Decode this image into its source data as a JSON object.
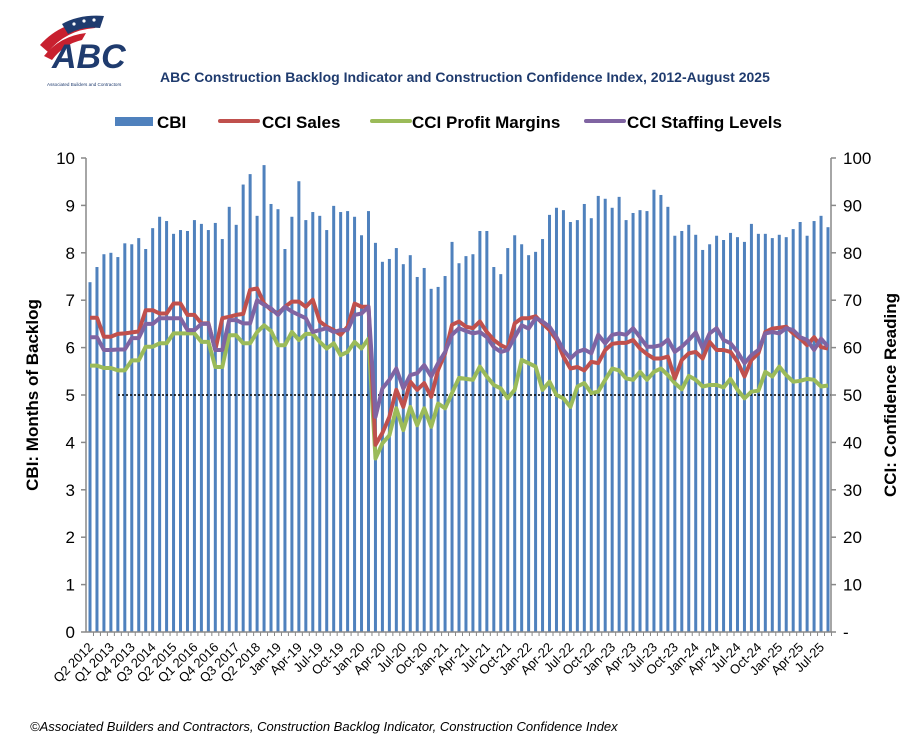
{
  "logo": {
    "text": "ABC",
    "subtitle": "Associated Builders and Contractors"
  },
  "footnote": "©Associated Builders and Contractors, Construction Backlog Indicator, Construction Confidence Index",
  "chart_data": {
    "type": "bar+line",
    "title": "ABC Construction Backlog Indicator and Construction Confidence Index, 2012-August 2025",
    "ylabel_left": "CBI: Months of Backlog",
    "ylabel_right": "CCI: Confidence Reading",
    "ylim_left": [
      0,
      10
    ],
    "ylim_right": [
      0,
      100
    ],
    "yticks_left": [
      "0",
      "1",
      "2",
      "3",
      "4",
      "5",
      "6",
      "7",
      "8",
      "9",
      "10"
    ],
    "yticks_right": [
      "-",
      "10",
      "20",
      "30",
      "40",
      "50",
      "60",
      "70",
      "80",
      "90",
      "100"
    ],
    "reference_line": {
      "axis": "right",
      "value": 50,
      "style": "dotted"
    },
    "legend_position": "top",
    "grid": false,
    "colors": {
      "CBI": "#4f81bd",
      "CCI Sales": "#c0504d",
      "CCI Profit Margins": "#9bbb59",
      "CCI Staffing Levels": "#8064a2"
    },
    "categories": [
      "Q2 2012",
      "Q3 2012",
      "Q4 2012",
      "Q1 2013",
      "Q2 2013",
      "Q3 2013",
      "Q4 2013",
      "Q1 2014",
      "Q2 2014",
      "Q3 2014",
      "Q4 2014",
      "Q1 2015",
      "Q2 2015",
      "Q3 2015",
      "Q4 2015",
      "Q1 2016",
      "Q2 2016",
      "Q3 2016",
      "Q4 2016",
      "Q1 2017",
      "Q2 2017",
      "Q3 2017",
      "Q4 2017",
      "Q1 2018",
      "Q2 2018",
      "Q3 2018",
      "Q4 2018",
      "Jan-19",
      "Feb-19",
      "Mar-19",
      "Apr-19",
      "May-19",
      "Jun-19",
      "Jul-19",
      "Aug-19",
      "Sep-19",
      "Oct-19",
      "Nov-19",
      "Dec-19",
      "Jan-20",
      "Feb-20",
      "Mar-20",
      "Apr-20",
      "May-20",
      "Jun-20",
      "Jul-20",
      "Aug-20",
      "Sep-20",
      "Oct-20",
      "Nov-20",
      "Dec-20",
      "Jan-21",
      "Feb-21",
      "Mar-21",
      "Apr-21",
      "May-21",
      "Jun-21",
      "Jul-21",
      "Aug-21",
      "Sep-21",
      "Oct-21",
      "Nov-21",
      "Dec-21",
      "Jan-22",
      "Feb-22",
      "Mar-22",
      "Apr-22",
      "May-22",
      "Jun-22",
      "Jul-22",
      "Aug-22",
      "Sep-22",
      "Oct-22",
      "Nov-22",
      "Dec-22",
      "Jan-23",
      "Feb-23",
      "Mar-23",
      "Apr-23",
      "May-23",
      "Jun-23",
      "Jul-23",
      "Aug-23",
      "Sep-23",
      "Oct-23",
      "Nov-23",
      "Dec-23",
      "Jan-24",
      "Feb-24",
      "Mar-24",
      "Apr-24",
      "May-24",
      "Jun-24",
      "Jul-24",
      "Aug-24",
      "Sep-24",
      "Oct-24",
      "Nov-24",
      "Dec-24",
      "Jan-25",
      "Feb-25",
      "Mar-25",
      "Apr-25",
      "May-25",
      "Jun-25",
      "Jul-25",
      "Aug-25"
    ],
    "tick_labels": [
      "Q2 2012",
      "Q1 2013",
      "Q4 2013",
      "Q3 2014",
      "Q2 2015",
      "Q1 2016",
      "Q4 2016",
      "Q3 2017",
      "Q2 2018",
      "Jan-19",
      "Apr-19",
      "Jul-19",
      "Oct-19",
      "Jan-20",
      "Apr-20",
      "Jul-20",
      "Oct-20",
      "Jan-21",
      "Apr-21",
      "Jul-21",
      "Oct-21",
      "Jan-22",
      "Apr-22",
      "Jul-22",
      "Oct-22",
      "Jan-23",
      "Apr-23",
      "Jul-23",
      "Oct-23",
      "Jan-24",
      "Apr-24",
      "Jul-24",
      "Oct-24",
      "Jan-25",
      "Apr-25",
      "Jul-25"
    ],
    "series": [
      {
        "name": "CBI",
        "type": "bar",
        "axis": "left",
        "values": [
          7.38,
          7.7,
          7.97,
          8.0,
          7.91,
          8.2,
          8.18,
          8.31,
          8.08,
          8.52,
          8.76,
          8.67,
          8.4,
          8.48,
          8.46,
          8.69,
          8.61,
          8.48,
          8.63,
          8.29,
          8.97,
          8.59,
          9.44,
          9.66,
          8.78,
          9.85,
          9.03,
          8.92,
          8.08,
          8.76,
          9.51,
          8.69,
          8.86,
          8.78,
          8.48,
          8.99,
          8.86,
          8.88,
          8.76,
          8.37,
          8.88,
          8.21,
          7.81,
          7.87,
          8.1,
          7.76,
          7.95,
          7.49,
          7.68,
          7.24,
          7.28,
          7.51,
          8.23,
          7.78,
          7.93,
          7.97,
          8.46,
          8.46,
          7.7,
          7.55,
          8.1,
          8.37,
          8.18,
          7.95,
          8.02,
          8.29,
          8.8,
          8.95,
          8.9,
          8.65,
          8.69,
          9.03,
          8.73,
          9.2,
          9.14,
          8.95,
          9.18,
          8.69,
          8.84,
          8.9,
          8.88,
          9.33,
          9.22,
          8.97,
          8.36,
          8.46,
          8.59,
          8.38,
          8.06,
          8.18,
          8.36,
          8.27,
          8.42,
          8.33,
          8.23,
          8.61,
          8.4,
          8.4,
          8.31,
          8.38,
          8.33,
          8.5,
          8.65,
          8.36,
          8.67,
          8.78,
          8.54
        ]
      },
      {
        "name": "CCI Sales",
        "type": "line",
        "axis": "right",
        "values": [
          66.3,
          66.3,
          62.3,
          62.3,
          62.9,
          63.0,
          63.2,
          63.4,
          67.9,
          67.9,
          67.2,
          67.2,
          69.3,
          69.3,
          66.9,
          66.9,
          65.1,
          65.1,
          59.5,
          66.2,
          66.5,
          66.9,
          67.1,
          72.2,
          72.5,
          69.3,
          68.0,
          67.2,
          68.6,
          69.7,
          69.7,
          68.6,
          70.1,
          65.5,
          64.4,
          63.7,
          62.7,
          64.4,
          69.3,
          68.6,
          68.6,
          39.5,
          42.0,
          45.4,
          51.1,
          47.5,
          52.8,
          51.1,
          52.5,
          49.6,
          55.3,
          58.8,
          64.8,
          65.5,
          64.4,
          64.1,
          65.5,
          63.3,
          61.6,
          60.5,
          59.8,
          65.1,
          66.2,
          66.2,
          66.6,
          65.1,
          63.7,
          61.6,
          58.1,
          55.6,
          55.9,
          55.2,
          57.0,
          56.7,
          59.5,
          60.8,
          61.0,
          61.0,
          61.6,
          59.8,
          58.6,
          57.7,
          57.7,
          58.1,
          53.5,
          57.4,
          58.8,
          59.1,
          57.7,
          61.2,
          59.5,
          59.5,
          59.1,
          57.0,
          53.9,
          57.4,
          58.8,
          63.3,
          64.0,
          64.2,
          64.4,
          63.0,
          61.9,
          60.5,
          62.2,
          60.1,
          59.8
        ]
      },
      {
        "name": "CCI Profit Margins",
        "type": "line",
        "axis": "right",
        "values": [
          56.2,
          56.2,
          55.7,
          55.7,
          55.2,
          55.2,
          57.3,
          57.3,
          60.2,
          60.2,
          60.9,
          60.9,
          63.0,
          63.0,
          63.0,
          63.0,
          61.2,
          61.2,
          55.9,
          55.9,
          62.6,
          62.6,
          60.9,
          60.9,
          63.3,
          64.7,
          63.5,
          60.5,
          60.5,
          63.3,
          61.6,
          62.9,
          62.9,
          61.2,
          59.8,
          60.9,
          58.4,
          59.1,
          61.2,
          59.8,
          61.9,
          36.6,
          39.8,
          41.5,
          47.2,
          42.6,
          47.5,
          43.6,
          47.2,
          43.3,
          48.2,
          47.2,
          50.4,
          53.6,
          53.4,
          53.2,
          56.0,
          53.9,
          52.1,
          51.4,
          49.3,
          51.1,
          57.4,
          56.7,
          56.0,
          51.1,
          52.8,
          50.0,
          49.3,
          47.5,
          51.8,
          52.5,
          50.4,
          50.7,
          53.2,
          55.6,
          55.2,
          53.5,
          53.2,
          54.9,
          53.2,
          54.9,
          55.6,
          54.2,
          52.5,
          51.2,
          54.0,
          53.2,
          51.8,
          52.1,
          52.1,
          51.6,
          53.4,
          51.1,
          49.3,
          50.7,
          50.9,
          54.9,
          53.9,
          56.0,
          54.2,
          52.8,
          53.0,
          53.4,
          53.2,
          51.8,
          52.0
        ]
      },
      {
        "name": "CCI Staffing Levels",
        "type": "line",
        "axis": "right",
        "values": [
          62.2,
          62.2,
          59.5,
          59.5,
          59.6,
          59.6,
          62.0,
          62.0,
          65.0,
          65.0,
          66.2,
          66.2,
          66.2,
          66.2,
          63.7,
          63.7,
          65.0,
          65.0,
          59.5,
          59.5,
          65.8,
          65.8,
          65.1,
          65.1,
          70.0,
          69.0,
          68.3,
          66.9,
          68.6,
          67.6,
          66.9,
          66.2,
          63.3,
          63.7,
          64.1,
          63.3,
          63.7,
          63.7,
          66.9,
          67.2,
          68.6,
          45.4,
          51.4,
          53.2,
          55.6,
          51.4,
          54.2,
          54.6,
          56.3,
          53.9,
          56.7,
          59.1,
          62.7,
          64.1,
          63.5,
          63.0,
          63.3,
          62.2,
          60.1,
          59.1,
          59.5,
          62.2,
          64.7,
          64.0,
          66.2,
          65.5,
          64.4,
          62.2,
          59.5,
          57.7,
          59.1,
          59.6,
          58.8,
          62.7,
          60.9,
          62.7,
          63.0,
          62.7,
          64.1,
          62.2,
          60.2,
          60.2,
          60.5,
          61.7,
          59.1,
          60.2,
          61.6,
          63.2,
          59.8,
          63.0,
          64.1,
          61.6,
          60.9,
          59.1,
          56.7,
          58.4,
          59.5,
          63.0,
          63.3,
          63.0,
          64.1,
          63.7,
          62.2,
          61.6,
          59.5,
          61.9,
          60.2
        ]
      }
    ]
  }
}
